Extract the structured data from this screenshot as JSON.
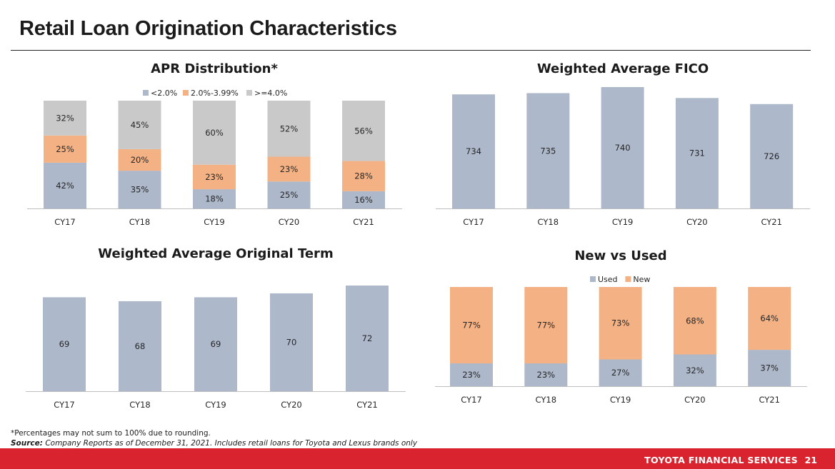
{
  "page": {
    "title": "Retail Loan Origination Characteristics",
    "footnote": "*Percentages may not sum to 100% due to rounding.",
    "source_label": "Source:",
    "source_text": "Company Reports as of December 31, 2021. Includes retail loans for Toyota and Lexus brands only",
    "brand": "TOYOTA FINANCIAL SERVICES",
    "page_number": "21"
  },
  "colors": {
    "blue_gray": "#adb8ca",
    "orange": "#f4b183",
    "light_gray": "#c9c9c9",
    "footer_red": "#d9232e"
  },
  "chart_data": [
    {
      "type": "bar",
      "stacked": true,
      "title": "APR Distribution*",
      "categories": [
        "CY17",
        "CY18",
        "CY19",
        "CY20",
        "CY21"
      ],
      "series": [
        {
          "name": "<2.0%",
          "values": [
            42,
            35,
            18,
            25,
            16
          ],
          "labels": [
            "42%",
            "35%",
            "18%",
            "25%",
            "16%"
          ],
          "color": "#adb8ca"
        },
        {
          "name": "2.0%-3.99%",
          "values": [
            25,
            20,
            23,
            23,
            28
          ],
          "labels": [
            "25%",
            "20%",
            "23%",
            "23%",
            "28%"
          ],
          "color": "#f4b183"
        },
        {
          "name": ">=4.0%",
          "values": [
            32,
            45,
            60,
            52,
            56
          ],
          "labels": [
            "32%",
            "45%",
            "60%",
            "52%",
            "56%"
          ],
          "color": "#c9c9c9"
        }
      ],
      "legend": "top"
    },
    {
      "type": "bar",
      "title": "Weighted Average FICO",
      "categories": [
        "CY17",
        "CY18",
        "CY19",
        "CY20",
        "CY21"
      ],
      "values": [
        734,
        735,
        740,
        731,
        726
      ],
      "labels": [
        "734",
        "735",
        "740",
        "731",
        "726"
      ],
      "color": "#adb8ca"
    },
    {
      "type": "bar",
      "title": "Weighted Average Original Term",
      "categories": [
        "CY17",
        "CY18",
        "CY19",
        "CY20",
        "CY21"
      ],
      "values": [
        69,
        68,
        69,
        70,
        72
      ],
      "labels": [
        "69",
        "68",
        "69",
        "70",
        "72"
      ],
      "color": "#adb8ca"
    },
    {
      "type": "bar",
      "stacked": true,
      "title": "New vs Used",
      "categories": [
        "CY17",
        "CY18",
        "CY19",
        "CY20",
        "CY21"
      ],
      "series": [
        {
          "name": "Used",
          "values": [
            23,
            23,
            27,
            32,
            37
          ],
          "labels": [
            "23%",
            "23%",
            "27%",
            "32%",
            "37%"
          ],
          "color": "#adb8ca"
        },
        {
          "name": "New",
          "values": [
            77,
            77,
            73,
            68,
            64
          ],
          "labels": [
            "77%",
            "77%",
            "73%",
            "68%",
            "64%"
          ],
          "color": "#f4b183"
        }
      ],
      "legend": "top"
    }
  ]
}
